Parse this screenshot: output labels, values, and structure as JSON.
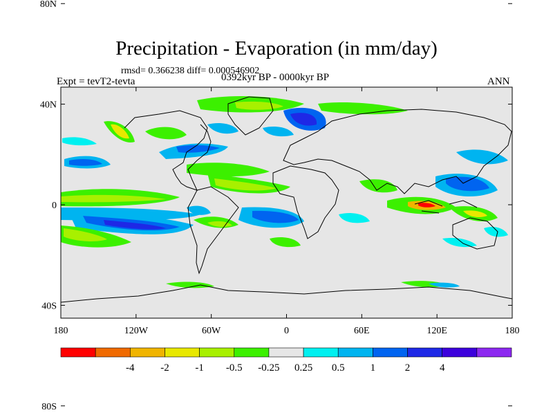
{
  "title": "Precipitation - Evaporation (in mm/day)",
  "stats": "rmsd= 0.366238 diff= 0.000546902",
  "left_label": "Expt = tevT2-tevta",
  "center_label": "0392kyr BP - 0000kyr BP",
  "right_label": "ANN",
  "lat_ticks": [
    "80N",
    "40N",
    "0",
    "40S",
    "80S"
  ],
  "lat_values": [
    80,
    40,
    0,
    -40,
    -80
  ],
  "lon_ticks": [
    "180",
    "120W",
    "60W",
    "0",
    "60E",
    "120E",
    "180"
  ],
  "lon_values": [
    -180,
    -120,
    -60,
    0,
    60,
    120,
    180
  ],
  "colorbar": {
    "colors": [
      "#ff0000",
      "#f06a00",
      "#f0b400",
      "#e8e800",
      "#a8f000",
      "#3cf000",
      "#e6e6e6",
      "#00f0f0",
      "#00b4f0",
      "#0064f0",
      "#1e28e6",
      "#3c00dc",
      "#8c28f0"
    ],
    "labels": [
      "-4",
      "-2",
      "-1",
      "-0.5",
      "-0.25",
      "0.25",
      "0.5",
      "1",
      "2",
      "4"
    ]
  }
}
